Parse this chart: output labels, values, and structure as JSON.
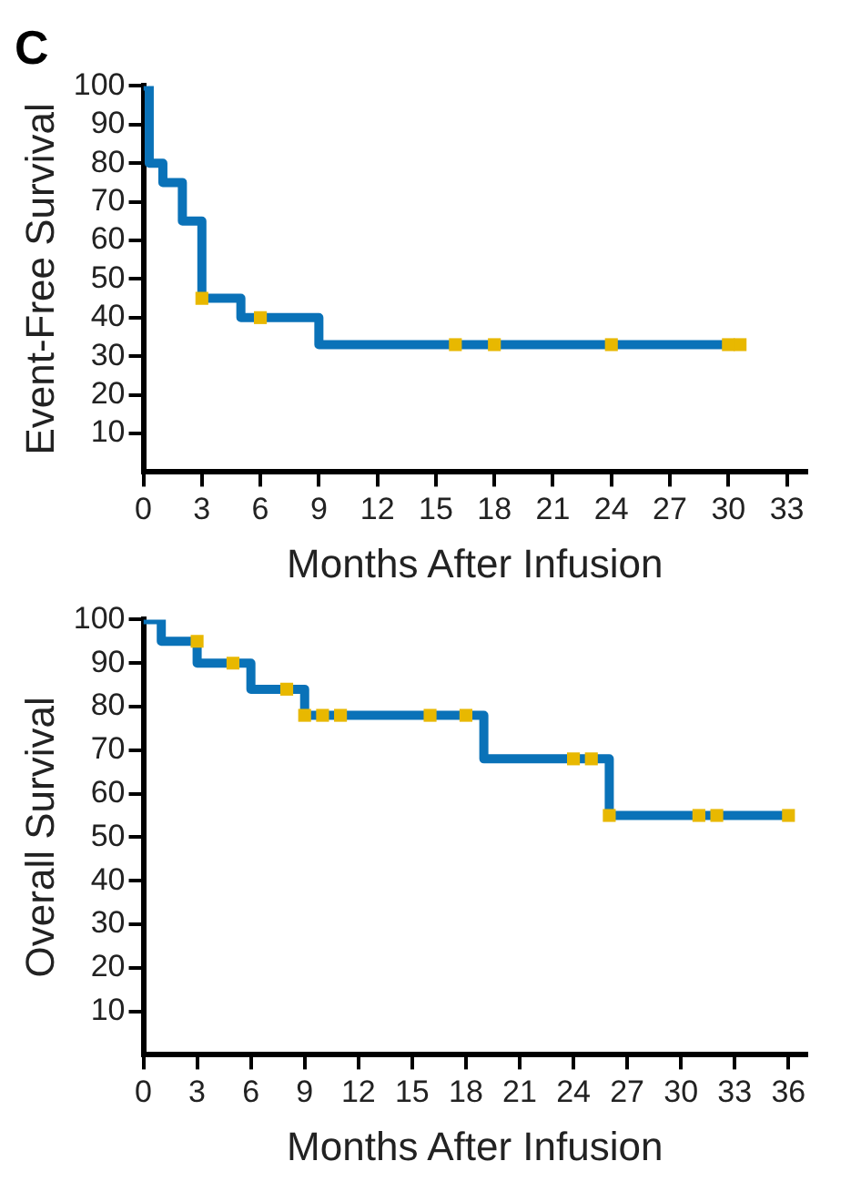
{
  "chart_data": [
    {
      "type": "step",
      "title": "C",
      "xlabel": "Months After Infusion",
      "ylabel": "Event-Free Survival",
      "xlim": [
        0,
        34
      ],
      "xticks": [
        0,
        3,
        6,
        9,
        12,
        15,
        18,
        21,
        24,
        27,
        30,
        33
      ],
      "ylim": [
        0,
        100
      ],
      "yticks": [
        10,
        20,
        30,
        40,
        50,
        60,
        70,
        80,
        90,
        100
      ],
      "grid": false,
      "legend": false,
      "series": [
        {
          "type": "step",
          "color": "#0a72b8",
          "marker": "none",
          "x": [
            0,
            0.3,
            1,
            2,
            3,
            5,
            9,
            30.7
          ],
          "values": [
            100,
            80,
            75,
            65,
            45,
            40,
            33,
            33
          ]
        },
        {
          "type": "scatter",
          "color": "#e8b800",
          "marker": "square",
          "x": [
            3,
            6,
            16,
            18,
            24,
            30,
            30.6
          ],
          "values": [
            45,
            40,
            33,
            33,
            33,
            33,
            33
          ]
        }
      ]
    },
    {
      "type": "step",
      "xlabel": "Months After Infusion",
      "ylabel": "Overall Survival",
      "xlim": [
        0,
        37
      ],
      "xticks": [
        0,
        3,
        6,
        9,
        12,
        15,
        18,
        21,
        24,
        27,
        30,
        33,
        36
      ],
      "ylim": [
        0,
        100
      ],
      "yticks": [
        10,
        20,
        30,
        40,
        50,
        60,
        70,
        80,
        90,
        100
      ],
      "grid": false,
      "legend": false,
      "series": [
        {
          "type": "step",
          "color": "#0a72b8",
          "marker": "none",
          "x": [
            0,
            1,
            3,
            6,
            9,
            19,
            26,
            36
          ],
          "values": [
            100,
            95,
            90,
            84,
            78,
            68,
            55,
            55
          ]
        },
        {
          "type": "scatter",
          "color": "#e8b800",
          "marker": "square",
          "x": [
            3,
            5,
            8,
            9,
            10,
            11,
            16,
            18,
            24,
            25,
            26,
            31,
            32,
            36
          ],
          "values": [
            95,
            90,
            84,
            78,
            78,
            78,
            78,
            78,
            68,
            68,
            55,
            55,
            55,
            55
          ]
        }
      ]
    }
  ]
}
